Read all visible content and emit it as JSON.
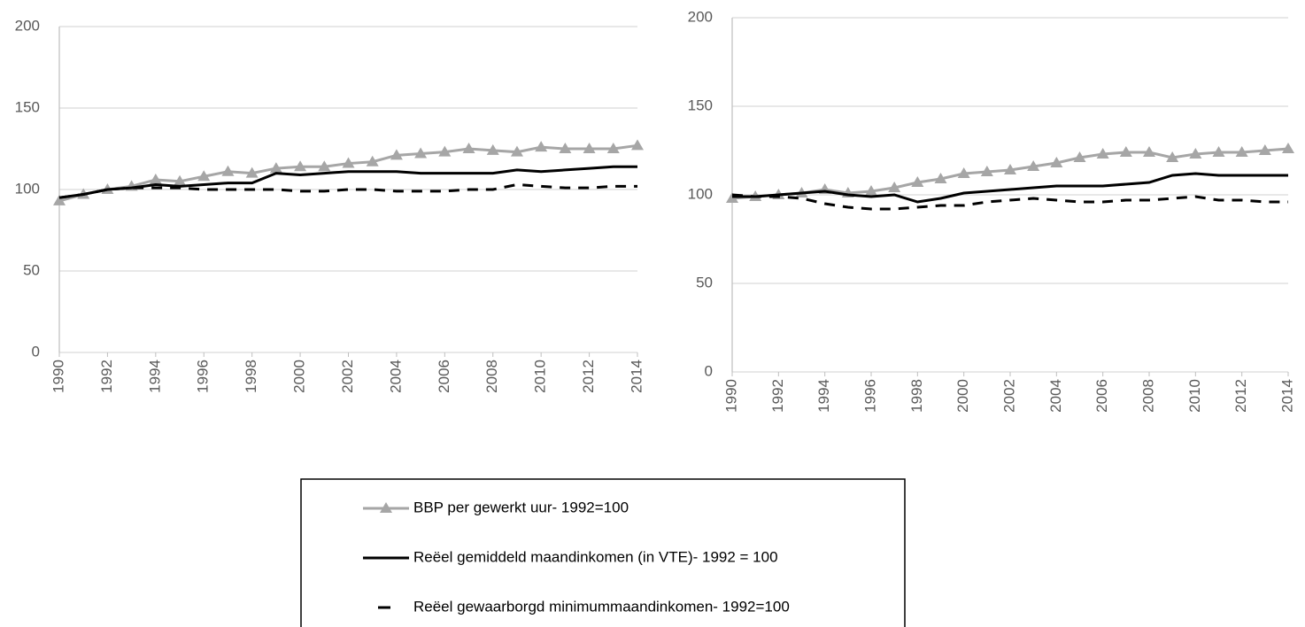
{
  "chart_data": [
    {
      "type": "line",
      "x": [
        1990,
        1991,
        1992,
        1993,
        1994,
        1995,
        1996,
        1997,
        1998,
        1999,
        2000,
        2001,
        2002,
        2003,
        2004,
        2005,
        2006,
        2007,
        2008,
        2009,
        2010,
        2011,
        2012,
        2013,
        2014
      ],
      "xlim": [
        1990,
        2014
      ],
      "xticks": [
        1990,
        1992,
        1994,
        1996,
        1998,
        2000,
        2002,
        2004,
        2006,
        2008,
        2010,
        2012,
        2014
      ],
      "ylim": [
        0,
        200
      ],
      "yticks": [
        0,
        50,
        100,
        150,
        200
      ],
      "grid": true,
      "series": [
        {
          "name": "BBP per gewerkt uur- 1992=100",
          "color": "#a6a6a6",
          "marker": "triangle",
          "values": [
            93,
            97,
            100,
            102,
            106,
            105,
            108,
            111,
            110,
            113,
            114,
            114,
            116,
            117,
            121,
            122,
            123,
            125,
            124,
            123,
            126,
            125,
            125,
            125,
            127
          ]
        },
        {
          "name": "Reëel gemiddeld maandinkomen (in VTE)- 1992 = 100",
          "color": "#000000",
          "values": [
            95,
            97,
            100,
            101,
            103,
            102,
            103,
            104,
            104,
            110,
            109,
            110,
            111,
            111,
            111,
            110,
            110,
            110,
            110,
            112,
            111,
            112,
            113,
            114,
            114
          ]
        },
        {
          "name": "Reëel gewaarborgd minimummaandinkomen- 1992=100",
          "color": "#000000",
          "dash": true,
          "values": [
            95,
            97,
            100,
            101,
            101,
            101,
            100,
            100,
            100,
            100,
            99,
            99,
            100,
            100,
            99,
            99,
            99,
            100,
            100,
            103,
            102,
            101,
            101,
            102,
            102
          ]
        }
      ]
    },
    {
      "type": "line",
      "x": [
        1990,
        1991,
        1992,
        1993,
        1994,
        1995,
        1996,
        1997,
        1998,
        1999,
        2000,
        2001,
        2002,
        2003,
        2004,
        2005,
        2006,
        2007,
        2008,
        2009,
        2010,
        2011,
        2012,
        2013,
        2014
      ],
      "xlim": [
        1990,
        2014
      ],
      "xticks": [
        1990,
        1992,
        1994,
        1996,
        1998,
        2000,
        2002,
        2004,
        2006,
        2008,
        2010,
        2012,
        2014
      ],
      "ylim": [
        0,
        200
      ],
      "yticks": [
        0,
        50,
        100,
        150,
        200
      ],
      "grid": true,
      "series": [
        {
          "color": "#a6a6a6",
          "marker": "triangle",
          "values": [
            98,
            99,
            100,
            101,
            103,
            101,
            102,
            104,
            107,
            109,
            112,
            113,
            114,
            116,
            118,
            121,
            123,
            124,
            124,
            121,
            123,
            124,
            124,
            125,
            126
          ]
        },
        {
          "color": "#000000",
          "values": [
            99,
            99,
            100,
            101,
            102,
            100,
            99,
            100,
            96,
            98,
            101,
            102,
            103,
            104,
            105,
            105,
            105,
            106,
            107,
            111,
            112,
            111,
            111,
            111,
            111
          ]
        },
        {
          "color": "#000000",
          "dash": true,
          "values": [
            100,
            99,
            99,
            98,
            95,
            93,
            92,
            92,
            93,
            94,
            94,
            96,
            97,
            98,
            97,
            96,
            96,
            97,
            97,
            98,
            99,
            97,
            97,
            96,
            96
          ]
        }
      ]
    }
  ]
}
